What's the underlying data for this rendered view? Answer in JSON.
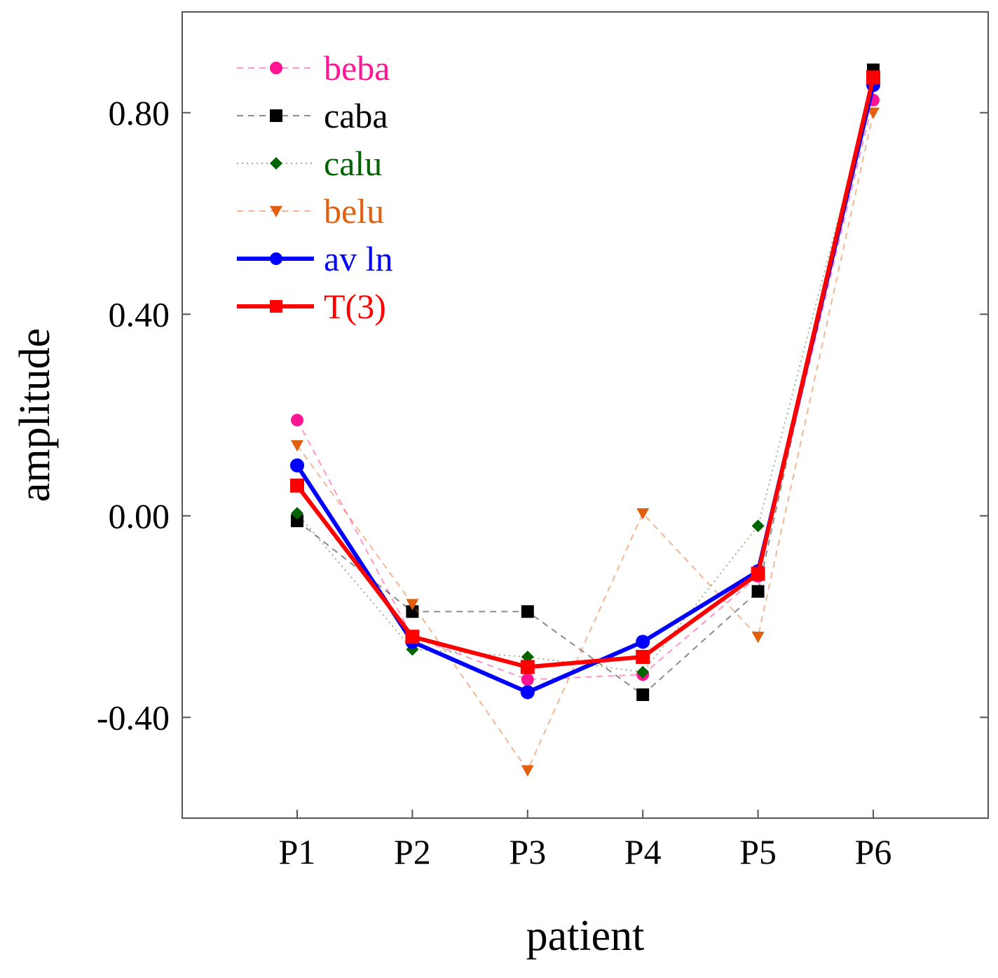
{
  "chart_data": {
    "type": "line",
    "title": "",
    "xlabel": "patient",
    "ylabel": "amplitude",
    "categories": [
      "P1",
      "P2",
      "P3",
      "P4",
      "P5",
      "P6"
    ],
    "ylim": [
      -0.6,
      1.0
    ],
    "yticks": [
      -0.4,
      0.0,
      0.4,
      0.8
    ],
    "ytick_labels": [
      "-0.40",
      "0.00",
      "0.40",
      "0.80"
    ],
    "grid": false,
    "legend_position": "top-left",
    "series": [
      {
        "name": "beba",
        "color": "#ff1493",
        "marker": "circle",
        "line": "dashed",
        "emphasis": false,
        "values": [
          0.19,
          -0.24,
          -0.325,
          -0.315,
          -0.12,
          0.825
        ]
      },
      {
        "name": "caba",
        "color": "#000000",
        "marker": "square",
        "line": "dashed",
        "emphasis": false,
        "values": [
          -0.01,
          -0.19,
          -0.19,
          -0.355,
          -0.15,
          0.885
        ]
      },
      {
        "name": "calu",
        "color": "#006400",
        "marker": "diamond",
        "line": "dotted",
        "emphasis": false,
        "values": [
          0.005,
          -0.265,
          -0.28,
          -0.31,
          -0.02,
          0.855
        ]
      },
      {
        "name": "belu",
        "color": "#e06010",
        "marker": "triangle-down",
        "line": "dashed",
        "emphasis": false,
        "values": [
          0.14,
          -0.175,
          -0.505,
          0.005,
          -0.24,
          0.8
        ]
      },
      {
        "name": "av ln",
        "color": "#0000ff",
        "marker": "circle",
        "line": "solid",
        "emphasis": true,
        "values": [
          0.1,
          -0.25,
          -0.35,
          -0.25,
          -0.11,
          0.855
        ]
      },
      {
        "name": "T(3)",
        "color": "#ff0000",
        "marker": "square",
        "line": "solid",
        "emphasis": true,
        "values": [
          0.06,
          -0.24,
          -0.3,
          -0.28,
          -0.115,
          0.87
        ]
      }
    ]
  }
}
